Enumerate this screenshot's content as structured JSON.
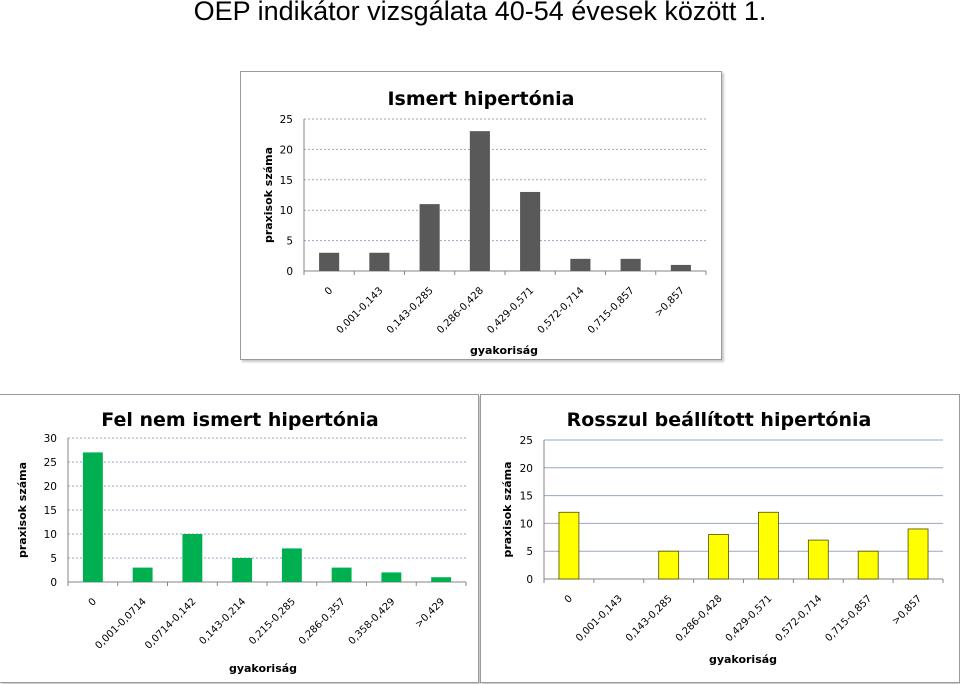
{
  "slide": {
    "title": "OEP indikátor vizsgálata 40-54 évesek között 1."
  },
  "chart_data": [
    {
      "id": "chart-ismert",
      "type": "bar",
      "title": "Ismert hipertónia",
      "xlabel": "gyakoriság",
      "ylabel": "praxisok száma",
      "ylim": [
        0,
        25
      ],
      "yticks": [
        0,
        5,
        10,
        15,
        20,
        25
      ],
      "grid": "dashed",
      "color": "#595959",
      "categories": [
        "0",
        "0,001-0,143",
        "0,143-0,285",
        "0,286-0,428",
        "0,429-0,571",
        "0,572-0,714",
        "0,715-0,857",
        ">0,857"
      ],
      "values": [
        3,
        3,
        11,
        23,
        13,
        2,
        2,
        1
      ]
    },
    {
      "id": "chart-felnem",
      "type": "bar",
      "title": "Fel nem ismert hipertónia",
      "xlabel": "gyakoriság",
      "ylabel": "praxisok száma",
      "ylim": [
        0,
        30
      ],
      "yticks": [
        0,
        5,
        10,
        15,
        20,
        25,
        30
      ],
      "grid": "dashed",
      "color": "#00b050",
      "categories": [
        "0",
        "0,001-0,0714",
        "0,0714-0,142",
        "0,143-0,214",
        "0,215-0,285",
        "0,286-0,357",
        "0,358-0,429",
        ">0,429"
      ],
      "values": [
        27,
        3,
        10,
        5,
        7,
        3,
        2,
        1
      ]
    },
    {
      "id": "chart-rosszul",
      "type": "bar",
      "title": "Rosszul beállított hipertónia",
      "xlabel": "gyakoriság",
      "ylabel": "praxisok száma",
      "ylim": [
        0,
        25
      ],
      "yticks": [
        0,
        5,
        10,
        15,
        20,
        25
      ],
      "grid": "solid",
      "color": "#ffff00",
      "categories": [
        "0",
        "0,001-0,143",
        "0,143-0,285",
        "0,286-0,428",
        "0,429-0,571",
        "0,572-0,714",
        "0,715-0,857",
        ">0,857"
      ],
      "values": [
        12,
        0,
        5,
        8,
        12,
        7,
        5,
        9
      ]
    }
  ]
}
